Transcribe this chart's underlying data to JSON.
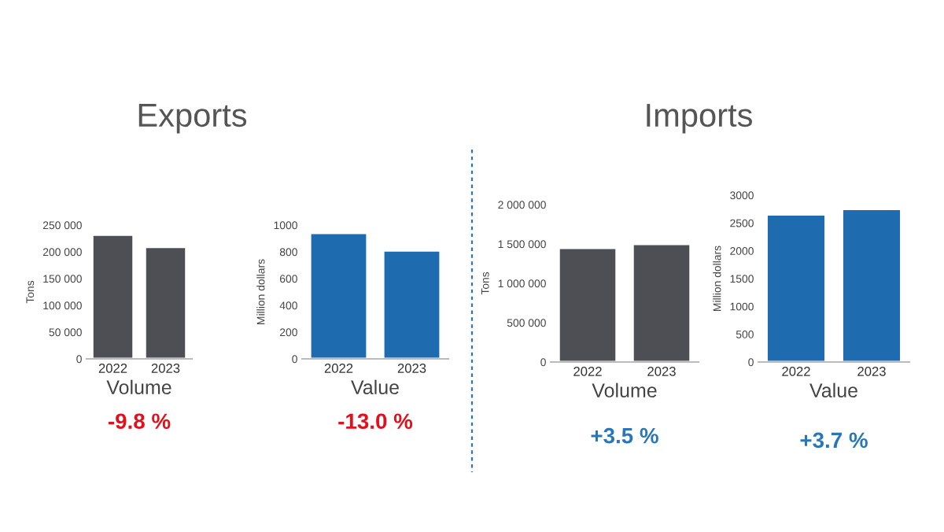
{
  "chart_data": [
    {
      "type": "bar",
      "title": "Exports",
      "categories": [
        "2022",
        "2023"
      ],
      "xlabel": "Volume",
      "ylabel": "Tons",
      "color": "#4d4f54",
      "values": [
        232000,
        209000
      ],
      "ylim": [
        0,
        250000
      ],
      "yticks": [
        0,
        {
          "value": 50000,
          "label": "50 000"
        },
        {
          "value": 100000,
          "label": "100 000"
        },
        {
          "value": 150000,
          "label": "150 000"
        },
        {
          "value": 200000,
          "label": "200 000"
        },
        {
          "value": 250000,
          "label": "250 000"
        }
      ],
      "annotations": [
        "-9.8 %"
      ]
    },
    {
      "type": "bar",
      "categories": [
        "2022",
        "2023"
      ],
      "xlabel": "Value",
      "ylabel": "Million dollars",
      "color": "#1f6bb0",
      "values": [
        940,
        810
      ],
      "ylim": [
        0,
        1000
      ],
      "yticks": [
        0,
        200,
        400,
        600,
        800,
        1000
      ],
      "annotations": [
        "-13.0 %"
      ]
    },
    {
      "type": "bar",
      "title": "Imports",
      "categories": [
        "2022",
        "2023"
      ],
      "xlabel": "Volume",
      "ylabel": "Tons",
      "color": "#4d4f54",
      "values": [
        1450000,
        1500000
      ],
      "ylim": [
        0,
        2000000
      ],
      "yticks": [
        0,
        {
          "value": 500000,
          "label": "500 000"
        },
        {
          "value": 1000000,
          "label": "1 000 000"
        },
        {
          "value": 1500000,
          "label": "1 500 000"
        },
        {
          "value": 2000000,
          "label": "2 000 000"
        }
      ],
      "annotations": [
        "+3.5 %"
      ]
    },
    {
      "type": "bar",
      "categories": [
        "2022",
        "2023"
      ],
      "xlabel": "Value",
      "ylabel": "Million dollars",
      "color": "#1f6bb0",
      "values": [
        2650,
        2750
      ],
      "ylim": [
        0,
        3000
      ],
      "yticks": [
        0,
        500,
        1000,
        1500,
        2000,
        2500,
        3000
      ],
      "annotations": [
        "+3.7 %"
      ]
    }
  ]
}
